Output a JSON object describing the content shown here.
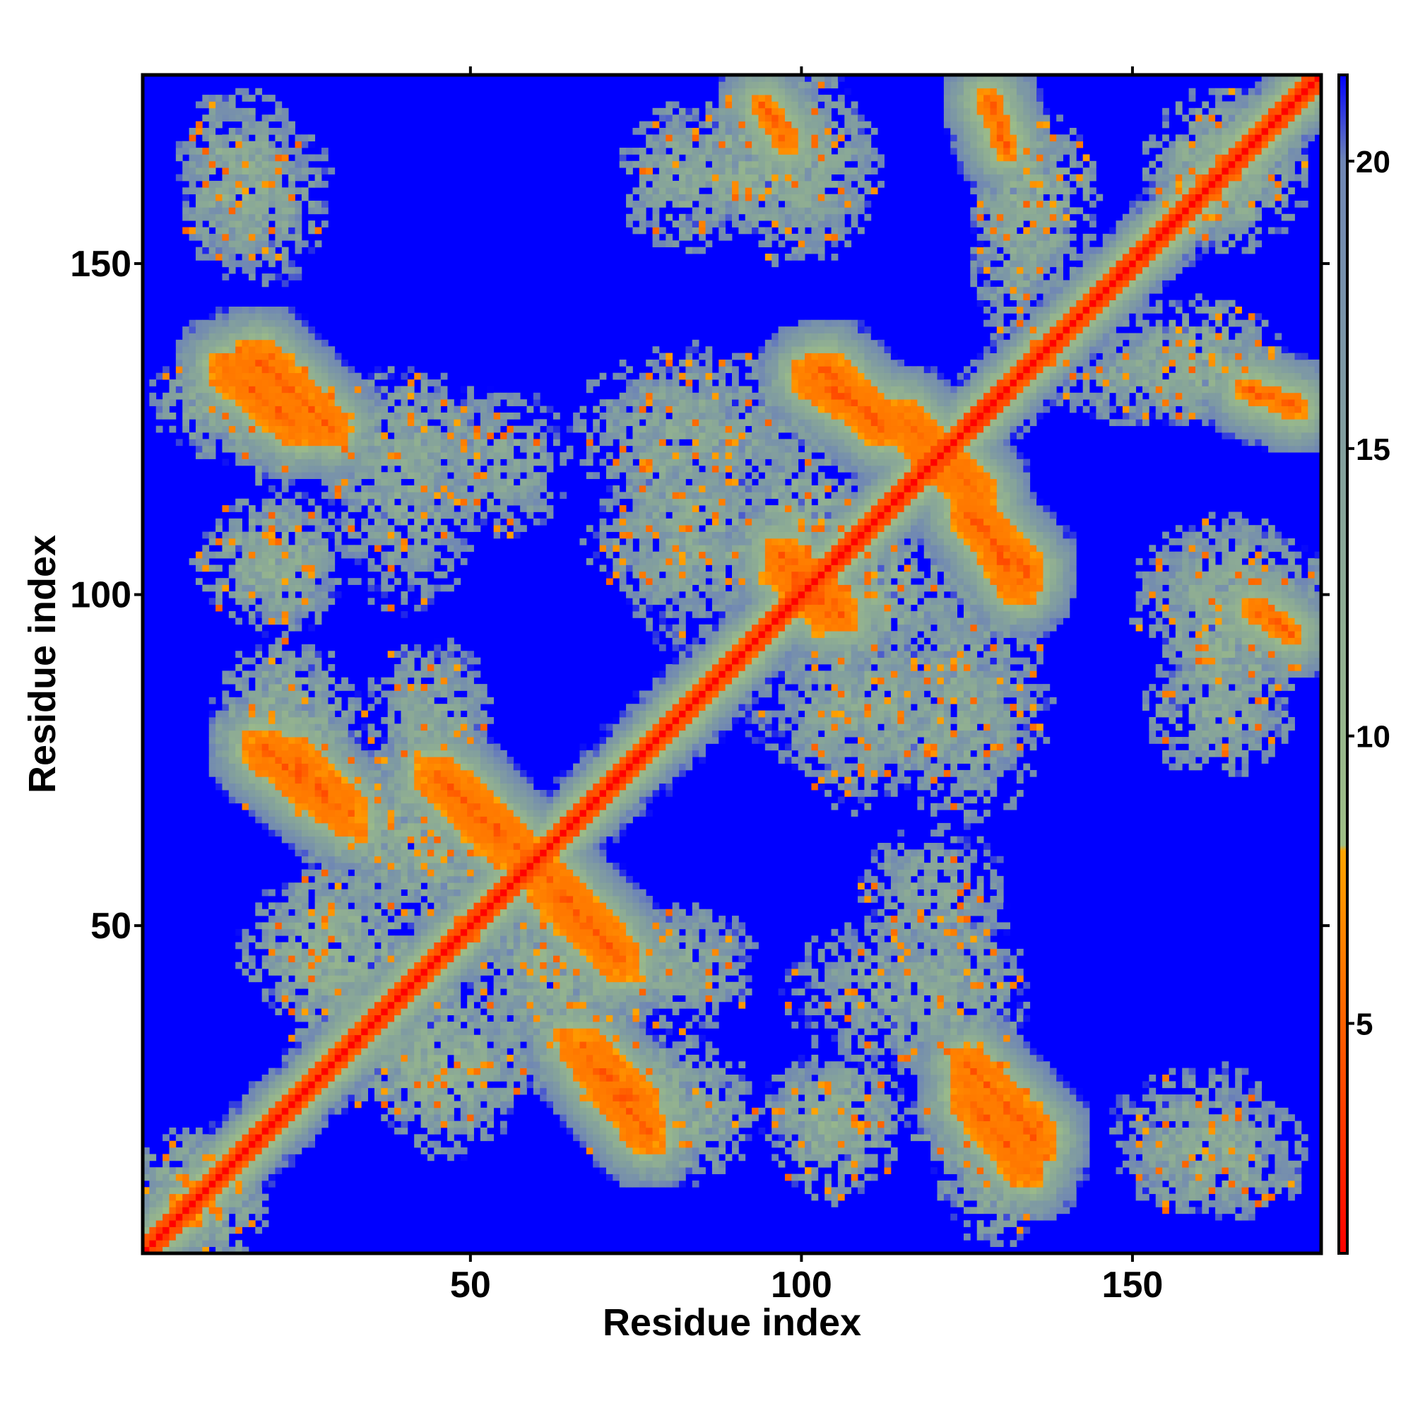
{
  "chart_data": {
    "type": "heatmap",
    "title": "",
    "xlabel": "Residue index",
    "ylabel": "Residue index",
    "xlim": [
      1,
      178
    ],
    "ylim": [
      1,
      178
    ],
    "xticks": [
      50,
      100,
      150
    ],
    "yticks": [
      50,
      100,
      150
    ],
    "colorbar": {
      "ticks": [
        5,
        10,
        15,
        20
      ],
      "range": [
        1,
        21.5
      ],
      "stops": [
        {
          "value": 1,
          "color": "#ff0000"
        },
        {
          "value": 4,
          "color": "#ff4a00"
        },
        {
          "value": 8,
          "color": "#ffa500"
        },
        {
          "value": 8.1,
          "color": "#9fbf86"
        },
        {
          "value": 14,
          "color": "#86a49a"
        },
        {
          "value": 20,
          "color": "#6f86b5"
        },
        {
          "value": 21.5,
          "color": "#0000ff"
        }
      ]
    },
    "background_color": "#0000ff",
    "description_of_values": "Symmetric residue-residue distance map; diagonal near 1, off-diagonal contact patches between 4 and 20, all other cells saturated blue (>21).",
    "diagonal_band": {
      "core": 3.5,
      "halo_width": 6
    },
    "contact_segments": [
      {
        "from": [
          13,
          134
        ],
        "to": [
          24,
          125
        ],
        "width": 3
      },
      {
        "from": [
          18,
          77
        ],
        "to": [
          29,
          68
        ],
        "width": 3
      },
      {
        "from": [
          44,
          73
        ],
        "to": [
          56,
          61
        ],
        "width": 3
      },
      {
        "from": [
          59,
          60
        ],
        "to": [
          71,
          47
        ],
        "width": 3
      },
      {
        "from": [
          66,
          32
        ],
        "to": [
          76,
          22
        ],
        "width": 3
      },
      {
        "from": [
          103,
          134
        ],
        "to": [
          112,
          125
        ],
        "width": 3
      },
      {
        "from": [
          126,
          112
        ],
        "to": [
          133,
          101
        ],
        "width": 3
      },
      {
        "from": [
          125,
          29
        ],
        "to": [
          136,
          17
        ],
        "width": 3
      },
      {
        "from": [
          97,
          104
        ],
        "to": [
          106,
          97
        ],
        "width": 3
      },
      {
        "from": [
          117,
          124
        ],
        "to": [
          127,
          115
        ],
        "width": 3
      },
      {
        "from": [
          94,
          174
        ],
        "to": [
          98,
          168
        ],
        "width": 2
      },
      {
        "from": [
          167,
          131
        ],
        "to": [
          175,
          128
        ],
        "width": 2
      }
    ],
    "contact_regions": [
      {
        "cx": 15,
        "cy": 163,
        "rx": 10,
        "ry": 14,
        "value": 13
      },
      {
        "cx": 95,
        "cy": 165,
        "rx": 18,
        "ry": 12,
        "value": 13
      },
      {
        "cx": 135,
        "cy": 160,
        "rx": 10,
        "ry": 14,
        "value": 13
      },
      {
        "cx": 165,
        "cy": 163,
        "rx": 12,
        "ry": 12,
        "value": 13
      },
      {
        "cx": 15,
        "cy": 130,
        "rx": 14,
        "ry": 10,
        "value": 13
      },
      {
        "cx": 40,
        "cy": 123,
        "rx": 14,
        "ry": 12,
        "value": 14
      },
      {
        "cx": 85,
        "cy": 125,
        "rx": 22,
        "ry": 12,
        "value": 14
      },
      {
        "cx": 155,
        "cy": 133,
        "rx": 20,
        "ry": 8,
        "value": 14
      },
      {
        "cx": 20,
        "cy": 105,
        "rx": 12,
        "ry": 10,
        "value": 13
      },
      {
        "cx": 85,
        "cy": 108,
        "rx": 18,
        "ry": 12,
        "value": 14
      },
      {
        "cx": 110,
        "cy": 100,
        "rx": 16,
        "ry": 10,
        "value": 13
      },
      {
        "cx": 165,
        "cy": 100,
        "rx": 16,
        "ry": 12,
        "value": 14
      },
      {
        "cx": 22,
        "cy": 80,
        "rx": 12,
        "ry": 14,
        "value": 13
      },
      {
        "cx": 44,
        "cy": 82,
        "rx": 10,
        "ry": 12,
        "value": 14
      },
      {
        "cx": 115,
        "cy": 82,
        "rx": 24,
        "ry": 12,
        "value": 14
      },
      {
        "cx": 163,
        "cy": 82,
        "rx": 12,
        "ry": 10,
        "value": 14
      },
      {
        "cx": 38,
        "cy": 64,
        "rx": 14,
        "ry": 12,
        "value": 13
      },
      {
        "cx": 120,
        "cy": 55,
        "rx": 12,
        "ry": 10,
        "value": 14
      },
      {
        "cx": 30,
        "cy": 47,
        "rx": 16,
        "ry": 12,
        "value": 13
      },
      {
        "cx": 62,
        "cy": 45,
        "rx": 12,
        "ry": 12,
        "value": 13
      },
      {
        "cx": 82,
        "cy": 45,
        "rx": 10,
        "ry": 8,
        "value": 14
      },
      {
        "cx": 115,
        "cy": 40,
        "rx": 18,
        "ry": 12,
        "value": 14
      },
      {
        "cx": 45,
        "cy": 28,
        "rx": 14,
        "ry": 10,
        "value": 13
      },
      {
        "cx": 80,
        "cy": 22,
        "rx": 12,
        "ry": 8,
        "value": 14
      },
      {
        "cx": 105,
        "cy": 22,
        "rx": 12,
        "ry": 8,
        "value": 14
      },
      {
        "cx": 128,
        "cy": 20,
        "rx": 12,
        "ry": 10,
        "value": 13
      },
      {
        "cx": 160,
        "cy": 18,
        "rx": 14,
        "ry": 12,
        "value": 14
      },
      {
        "cx": 7,
        "cy": 10,
        "rx": 9,
        "ry": 10,
        "value": 13
      }
    ]
  }
}
